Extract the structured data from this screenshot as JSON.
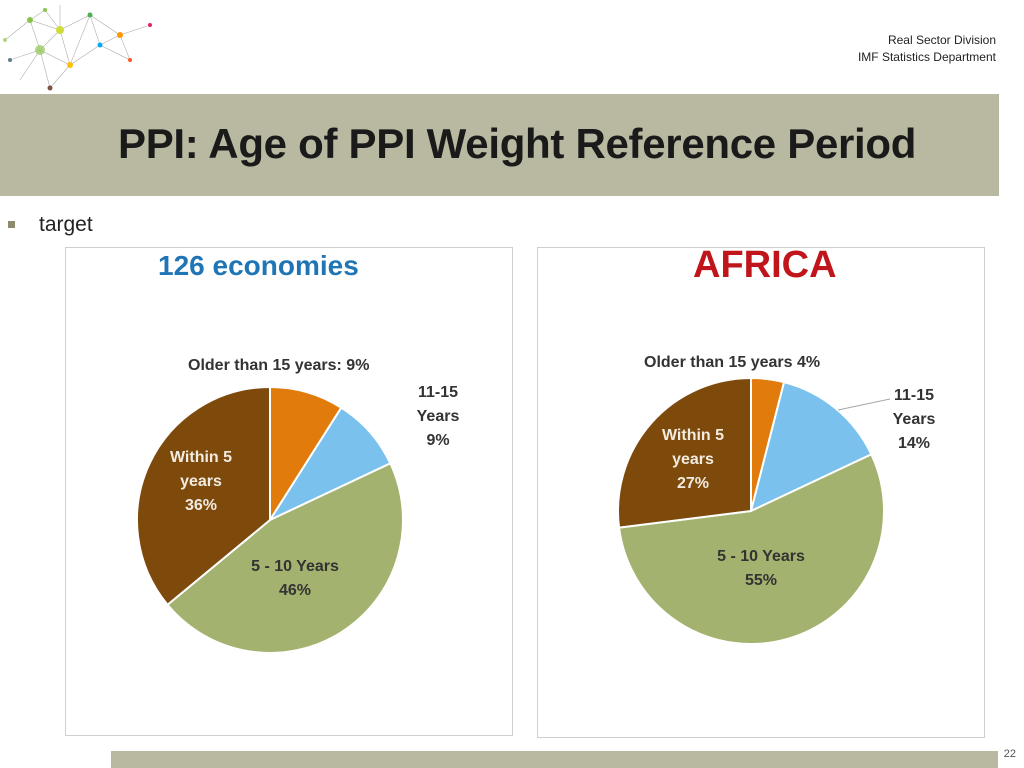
{
  "header": {
    "org_line1": "Real Sector Division",
    "org_line2": "IMF Statistics Department"
  },
  "slide": {
    "title": "PPI: Age of PPI Weight Reference Period",
    "bullet": "target",
    "page_number": "22"
  },
  "charts": {
    "left_title": "126 economies",
    "right_title": "AFRICA"
  },
  "colors": {
    "older": "#e07b0c",
    "y11_15": "#7bc1ee",
    "y5_10": "#a3b26e",
    "within5": "#7e4a0c",
    "band": "#b9b8a0",
    "left_title": "#1f75b5",
    "right_title": "#c0161b"
  },
  "chart_data": [
    {
      "type": "pie",
      "title": "126 economies",
      "labels": [
        "Older than 15 years: 9%",
        "11-15\nYears\n9%",
        "5 - 10 Years\n46%",
        "Within 5\nyears\n36%"
      ],
      "categories": [
        "Older than 15 years",
        "11-15 Years",
        "5 - 10 Years",
        "Within 5 years"
      ],
      "values": [
        9,
        9,
        46,
        36
      ]
    },
    {
      "type": "pie",
      "title": "AFRICA",
      "labels": [
        "Older than 15 years 4%",
        "11-15\nYears\n14%",
        "5 - 10 Years\n55%",
        "Within 5\nyears\n27%"
      ],
      "categories": [
        "Older than 15 years",
        "11-15 Years",
        "5 - 10 Years",
        "Within 5 years"
      ],
      "values": [
        4,
        14,
        55,
        27
      ]
    }
  ]
}
